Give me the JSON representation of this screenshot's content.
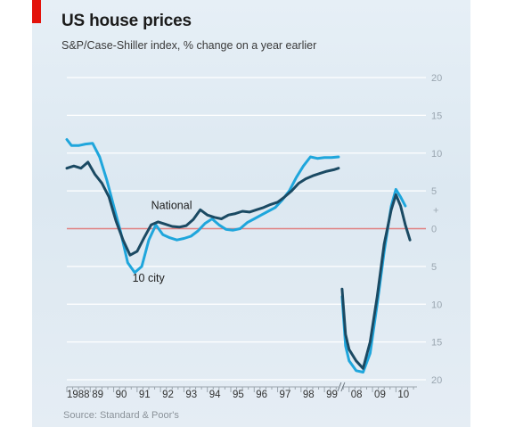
{
  "header": {
    "title": "US house prices",
    "subtitle": "S&P/Case-Shiller index, % change on a year earlier"
  },
  "footer": {
    "source": "Source: Standard & Poor's"
  },
  "colors": {
    "background": "#dde8f1",
    "accent": "#e3120b",
    "national": "#1b4a63",
    "ten_city": "#1fa6dc",
    "zero_line": "#e08080",
    "grid": "#ffffff"
  },
  "chart_data": {
    "type": "line",
    "title": "US house prices",
    "subtitle": "S&P/Case-Shiller index, % change on a year earlier",
    "xlabel": "",
    "ylabel": "",
    "y_axis_side": "right",
    "y_axis_inverted_below_zero_labels": true,
    "xlim": [
      1988.0,
      2010.9
    ],
    "ylim": [
      -20,
      20
    ],
    "y_ticks": [
      20,
      15,
      10,
      5,
      0,
      -5,
      -10,
      -15,
      -20
    ],
    "y_tick_labels": [
      "20",
      "15",
      "10",
      "5",
      "0",
      "5",
      "10",
      "15",
      "20"
    ],
    "y_minus_marker": "+",
    "x_tick_labels": [
      {
        "label": "1988",
        "x": 1988.0
      },
      {
        "label": "89",
        "x": 1989.0
      },
      {
        "label": "90",
        "x": 1990.0
      },
      {
        "label": "91",
        "x": 1991.0
      },
      {
        "label": "92",
        "x": 1992.0
      },
      {
        "label": "93",
        "x": 1993.0
      },
      {
        "label": "94",
        "x": 1994.0
      },
      {
        "label": "95",
        "x": 1995.0
      },
      {
        "label": "96",
        "x": 1996.0
      },
      {
        "label": "97",
        "x": 1997.0
      },
      {
        "label": "98",
        "x": 1998.0
      },
      {
        "label": "99",
        "x": 1999.0
      },
      {
        "label": "08",
        "x": 2008.0
      },
      {
        "label": "09",
        "x": 2009.0
      },
      {
        "label": "10",
        "x": 2010.0
      }
    ],
    "axis_break": {
      "from": 1999.6,
      "to": 2007.7
    },
    "grid": true,
    "legend": "inline-labels",
    "series": [
      {
        "name": "National",
        "color": "#1b4a63",
        "segments": [
          {
            "x": [
              1988.0,
              1988.3,
              1988.6,
              1988.9,
              1989.2,
              1989.5,
              1989.8,
              1990.1,
              1990.4,
              1990.7,
              1991.0,
              1991.3,
              1991.6,
              1991.9,
              1992.2,
              1992.5,
              1992.8,
              1993.1,
              1993.4,
              1993.7,
              1994.0,
              1994.3,
              1994.6,
              1994.9,
              1995.2,
              1995.5,
              1995.8,
              1996.1,
              1996.4,
              1996.7,
              1997.0,
              1997.3,
              1997.6,
              1997.9,
              1998.2,
              1998.5,
              1998.8,
              1999.1,
              1999.4,
              1999.6
            ],
            "y": [
              8.0,
              8.3,
              8.0,
              8.8,
              7.2,
              6.0,
              4.2,
              1.0,
              -1.5,
              -3.5,
              -3.0,
              -1.2,
              0.5,
              0.9,
              0.6,
              0.3,
              0.2,
              0.4,
              1.2,
              2.5,
              1.8,
              1.5,
              1.3,
              1.8,
              2.0,
              2.3,
              2.2,
              2.5,
              2.8,
              3.2,
              3.5,
              4.2,
              5.0,
              6.0,
              6.6,
              7.0,
              7.3,
              7.6,
              7.8,
              8.0
            ]
          },
          {
            "x": [
              2007.7,
              2007.85,
              2008.0,
              2008.3,
              2008.6,
              2008.9,
              2009.2,
              2009.5,
              2009.8,
              2010.0,
              2010.2,
              2010.4,
              2010.6
            ],
            "y": [
              -8.0,
              -14.0,
              -16.0,
              -17.5,
              -18.5,
              -15.0,
              -9.0,
              -2.0,
              2.5,
              4.5,
              3.0,
              0.5,
              -1.5
            ]
          }
        ]
      },
      {
        "name": "10 city",
        "color": "#1fa6dc",
        "segments": [
          {
            "x": [
              1988.0,
              1988.2,
              1988.5,
              1988.8,
              1989.1,
              1989.4,
              1989.7,
              1990.0,
              1990.3,
              1990.6,
              1990.9,
              1991.2,
              1991.5,
              1991.8,
              1992.1,
              1992.4,
              1992.7,
              1993.0,
              1993.3,
              1993.6,
              1993.9,
              1994.2,
              1994.5,
              1994.8,
              1995.1,
              1995.4,
              1995.7,
              1996.0,
              1996.3,
              1996.6,
              1996.9,
              1997.2,
              1997.5,
              1997.8,
              1998.1,
              1998.4,
              1998.7,
              1999.0,
              1999.3,
              1999.6
            ],
            "y": [
              11.8,
              11.0,
              11.0,
              11.2,
              11.3,
              9.5,
              6.5,
              3.0,
              -0.5,
              -4.5,
              -5.8,
              -5.0,
              -1.5,
              0.5,
              -0.8,
              -1.2,
              -1.5,
              -1.3,
              -1.0,
              -0.3,
              0.7,
              1.3,
              0.5,
              -0.1,
              -0.2,
              0.0,
              0.8,
              1.3,
              1.8,
              2.3,
              2.8,
              3.8,
              5.0,
              6.8,
              8.3,
              9.5,
              9.3,
              9.4,
              9.4,
              9.5
            ]
          },
          {
            "x": [
              2007.7,
              2007.85,
              2008.0,
              2008.3,
              2008.6,
              2008.9,
              2009.2,
              2009.5,
              2009.8,
              2010.0,
              2010.2,
              2010.4
            ],
            "y": [
              -9.0,
              -15.5,
              -17.5,
              -18.8,
              -19.0,
              -16.5,
              -10.0,
              -3.0,
              3.0,
              5.2,
              4.2,
              3.0
            ]
          }
        ]
      }
    ],
    "annotations": [
      {
        "text": "National",
        "x": 1991.6,
        "y": 2.6
      },
      {
        "text": "10 city",
        "x": 1990.8,
        "y": -7.0
      }
    ]
  }
}
